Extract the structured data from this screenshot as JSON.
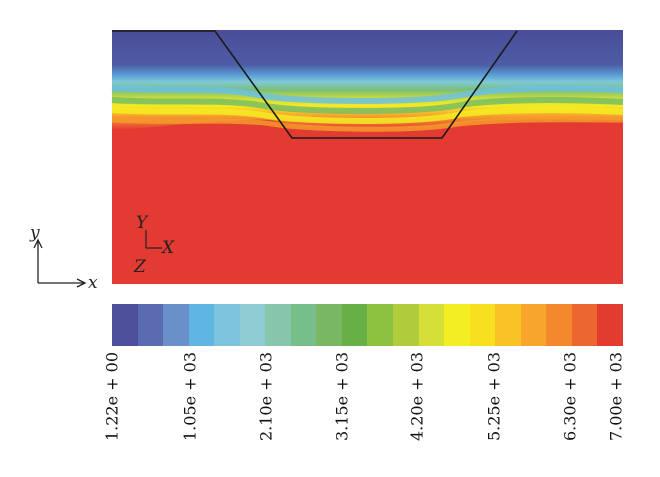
{
  "triad": {
    "y": "Y",
    "x": "X",
    "z": "Z"
  },
  "global_axes": {
    "y": "y",
    "x": "x"
  },
  "colorbar": {
    "colors": [
      "#4d4f9a",
      "#5b6bb0",
      "#6a90c9",
      "#5fb6e3",
      "#7cc4de",
      "#8fcbd3",
      "#88c6ac",
      "#76be8a",
      "#7ab762",
      "#67b045",
      "#8dc140",
      "#b1cc3a",
      "#d6de38",
      "#f3ee22",
      "#f6e020",
      "#f9c226",
      "#f8a52d",
      "#f4882d",
      "#ec6632",
      "#e23b30"
    ],
    "labels": [
      "1.22e + 00",
      "1.05e + 03",
      "2.10e + 03",
      "3.15e + 03",
      "4.20e + 03",
      "5.25e + 03",
      "6.30e + 03",
      "7.00e + 03"
    ]
  }
}
